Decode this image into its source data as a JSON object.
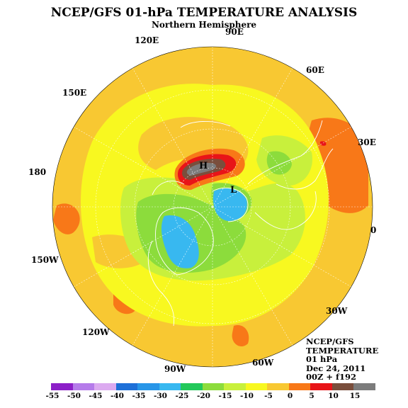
{
  "header": {
    "title": "NCEP/GFS 01-hPa TEMPERATURE ANALYSIS",
    "subtitle": "Northern Hemisphere"
  },
  "longitude_labels": [
    "90E",
    "60E",
    "30E",
    "0",
    "30W",
    "60W",
    "90W",
    "120W",
    "150W",
    "180",
    "150E",
    "120E"
  ],
  "centers": {
    "high": "H",
    "low": "L"
  },
  "info_block": {
    "source": "NCEP/GFS",
    "field": "TEMPERATURE",
    "level": "01 hPa",
    "date": "Dec 24, 2011",
    "run": "00Z + f192"
  },
  "legend": {
    "ticks": [
      "-55",
      "-50",
      "-45",
      "-40",
      "-35",
      "-30",
      "-25",
      "-20",
      "-15",
      "-10",
      "-5",
      "0",
      "5",
      "10",
      "15"
    ],
    "colors": [
      "#8c1fc8",
      "#b57bea",
      "#dcaaf0",
      "#1e70d8",
      "#2896e8",
      "#38b8f0",
      "#22c85a",
      "#8cdc3c",
      "#c8f03c",
      "#f8f820",
      "#f8c832",
      "#f87818",
      "#e81418",
      "#7a4e3c",
      "#7c7c7c"
    ]
  },
  "colors": {
    "background_warm": "#f8c832",
    "yellow": "#f8f820",
    "light_green": "#c8f03c",
    "green": "#8cdc3c",
    "cyan": "#38b8f0",
    "orange": "#f87818",
    "red": "#e81418",
    "brown": "#7a4e3c",
    "gray": "#7c7c7c",
    "coastline": "#ffffff"
  }
}
